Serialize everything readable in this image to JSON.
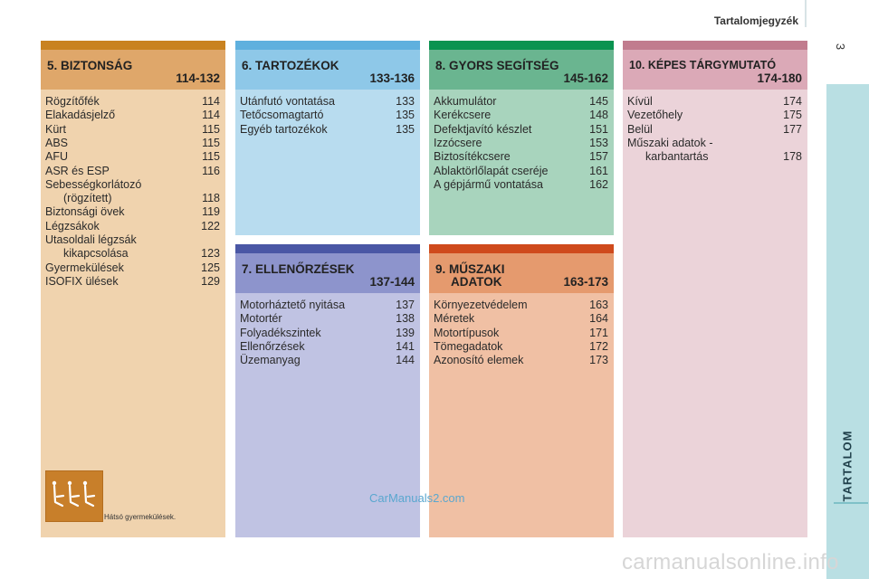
{
  "header": {
    "title": "Tartalomjegyzék",
    "page_number": "3"
  },
  "side_tab": {
    "label": "TARTALOM",
    "color": "#b9dfe3"
  },
  "sections": {
    "s5": {
      "title": "5. BIZTONSÁG",
      "range": "114-132",
      "bar_color": "#c98220",
      "head_color": "#dfa76a",
      "body_color": "#f0d3ae",
      "items": [
        {
          "label": "Rögzítőfék",
          "page": "114"
        },
        {
          "label": "Elakadásjelző",
          "page": "114"
        },
        {
          "label": "Kürt",
          "page": "115"
        },
        {
          "label": "ABS",
          "page": "115"
        },
        {
          "label": "AFU",
          "page": "115"
        },
        {
          "label": "ASR és ESP",
          "page": "116"
        },
        {
          "label": "Sebességkorlátozó",
          "page": ""
        },
        {
          "label": "(rögzített)",
          "page": "118"
        },
        {
          "label": "Biztonsági övek",
          "page": "119"
        },
        {
          "label": "Légzsákok",
          "page": "122"
        },
        {
          "label": "Utasoldali légzsák",
          "page": ""
        },
        {
          "label": "kikapcsolása",
          "page": "123"
        },
        {
          "label": "Gyermekülések",
          "page": "125"
        },
        {
          "label": "ISOFIX ülések",
          "page": "129"
        }
      ],
      "image_caption": "Hátsó gyermekülések."
    },
    "s6": {
      "title": "6. TARTOZÉKOK",
      "range": "133-136",
      "bar_color": "#5fb0de",
      "head_color": "#8ec8e8",
      "body_color": "#b8dcef",
      "items": [
        {
          "label": "Utánfutó vontatása",
          "page": "133"
        },
        {
          "label": "Tetőcsomagtartó",
          "page": "135"
        },
        {
          "label": "Egyéb tartozékok",
          "page": "135"
        }
      ]
    },
    "s7": {
      "title": "7. ELLENŐRZÉSEK",
      "range": "137-144",
      "bar_color": "#4a57a5",
      "head_color": "#8d94cc",
      "body_color": "#c0c3e3",
      "items": [
        {
          "label": "Motorháztető nyitása",
          "page": "137"
        },
        {
          "label": "Motortér",
          "page": "138"
        },
        {
          "label": "Folyadékszintek",
          "page": "139"
        },
        {
          "label": "Ellenőrzések",
          "page": "141"
        },
        {
          "label": "Üzemanyag",
          "page": "144"
        }
      ]
    },
    "s8": {
      "title": "8. GYORS SEGÍTSÉG",
      "range": "145-162",
      "bar_color": "#0a9350",
      "head_color": "#6ab590",
      "body_color": "#a8d4bd",
      "items": [
        {
          "label": "Akkumulátor",
          "page": "145"
        },
        {
          "label": "Kerékcsere",
          "page": "148"
        },
        {
          "label": "Defektjavító készlet",
          "page": "151"
        },
        {
          "label": "Izzócsere",
          "page": "153"
        },
        {
          "label": "Biztosítékcsere",
          "page": "157"
        },
        {
          "label": "Ablaktörlőlapát cseréje",
          "page": "161"
        },
        {
          "label": "A gépjármű vontatása",
          "page": "162"
        }
      ]
    },
    "s9": {
      "title": "9. MŰSZAKI",
      "title2": "ADATOK",
      "range": "163-173",
      "bar_color": "#cf4a1c",
      "head_color": "#e59a6e",
      "body_color": "#f0c0a4",
      "items": [
        {
          "label": "Környezetvédelem",
          "page": "163"
        },
        {
          "label": "Méretek",
          "page": "164"
        },
        {
          "label": "Motortípusok",
          "page": "171"
        },
        {
          "label": "Tömegadatok",
          "page": "172"
        },
        {
          "label": "Azonosító elemek",
          "page": "173"
        }
      ]
    },
    "s10": {
      "title": "10. KÉPES TÁRGYMUTATÓ",
      "range": "174-180",
      "bar_color": "#c17c8e",
      "head_color": "#dba9b7",
      "body_color": "#ebd3d9",
      "items": [
        {
          "label": "Kívül",
          "page": "174"
        },
        {
          "label": "Vezetőhely",
          "page": "175"
        },
        {
          "label": "Belül",
          "page": "177"
        },
        {
          "label": "Műszaki adatok -",
          "page": ""
        },
        {
          "label": "karbantartás",
          "page": "178"
        }
      ]
    }
  },
  "watermarks": {
    "w1": "CarManuals2.com",
    "w2": "carmanualsonline.info"
  }
}
